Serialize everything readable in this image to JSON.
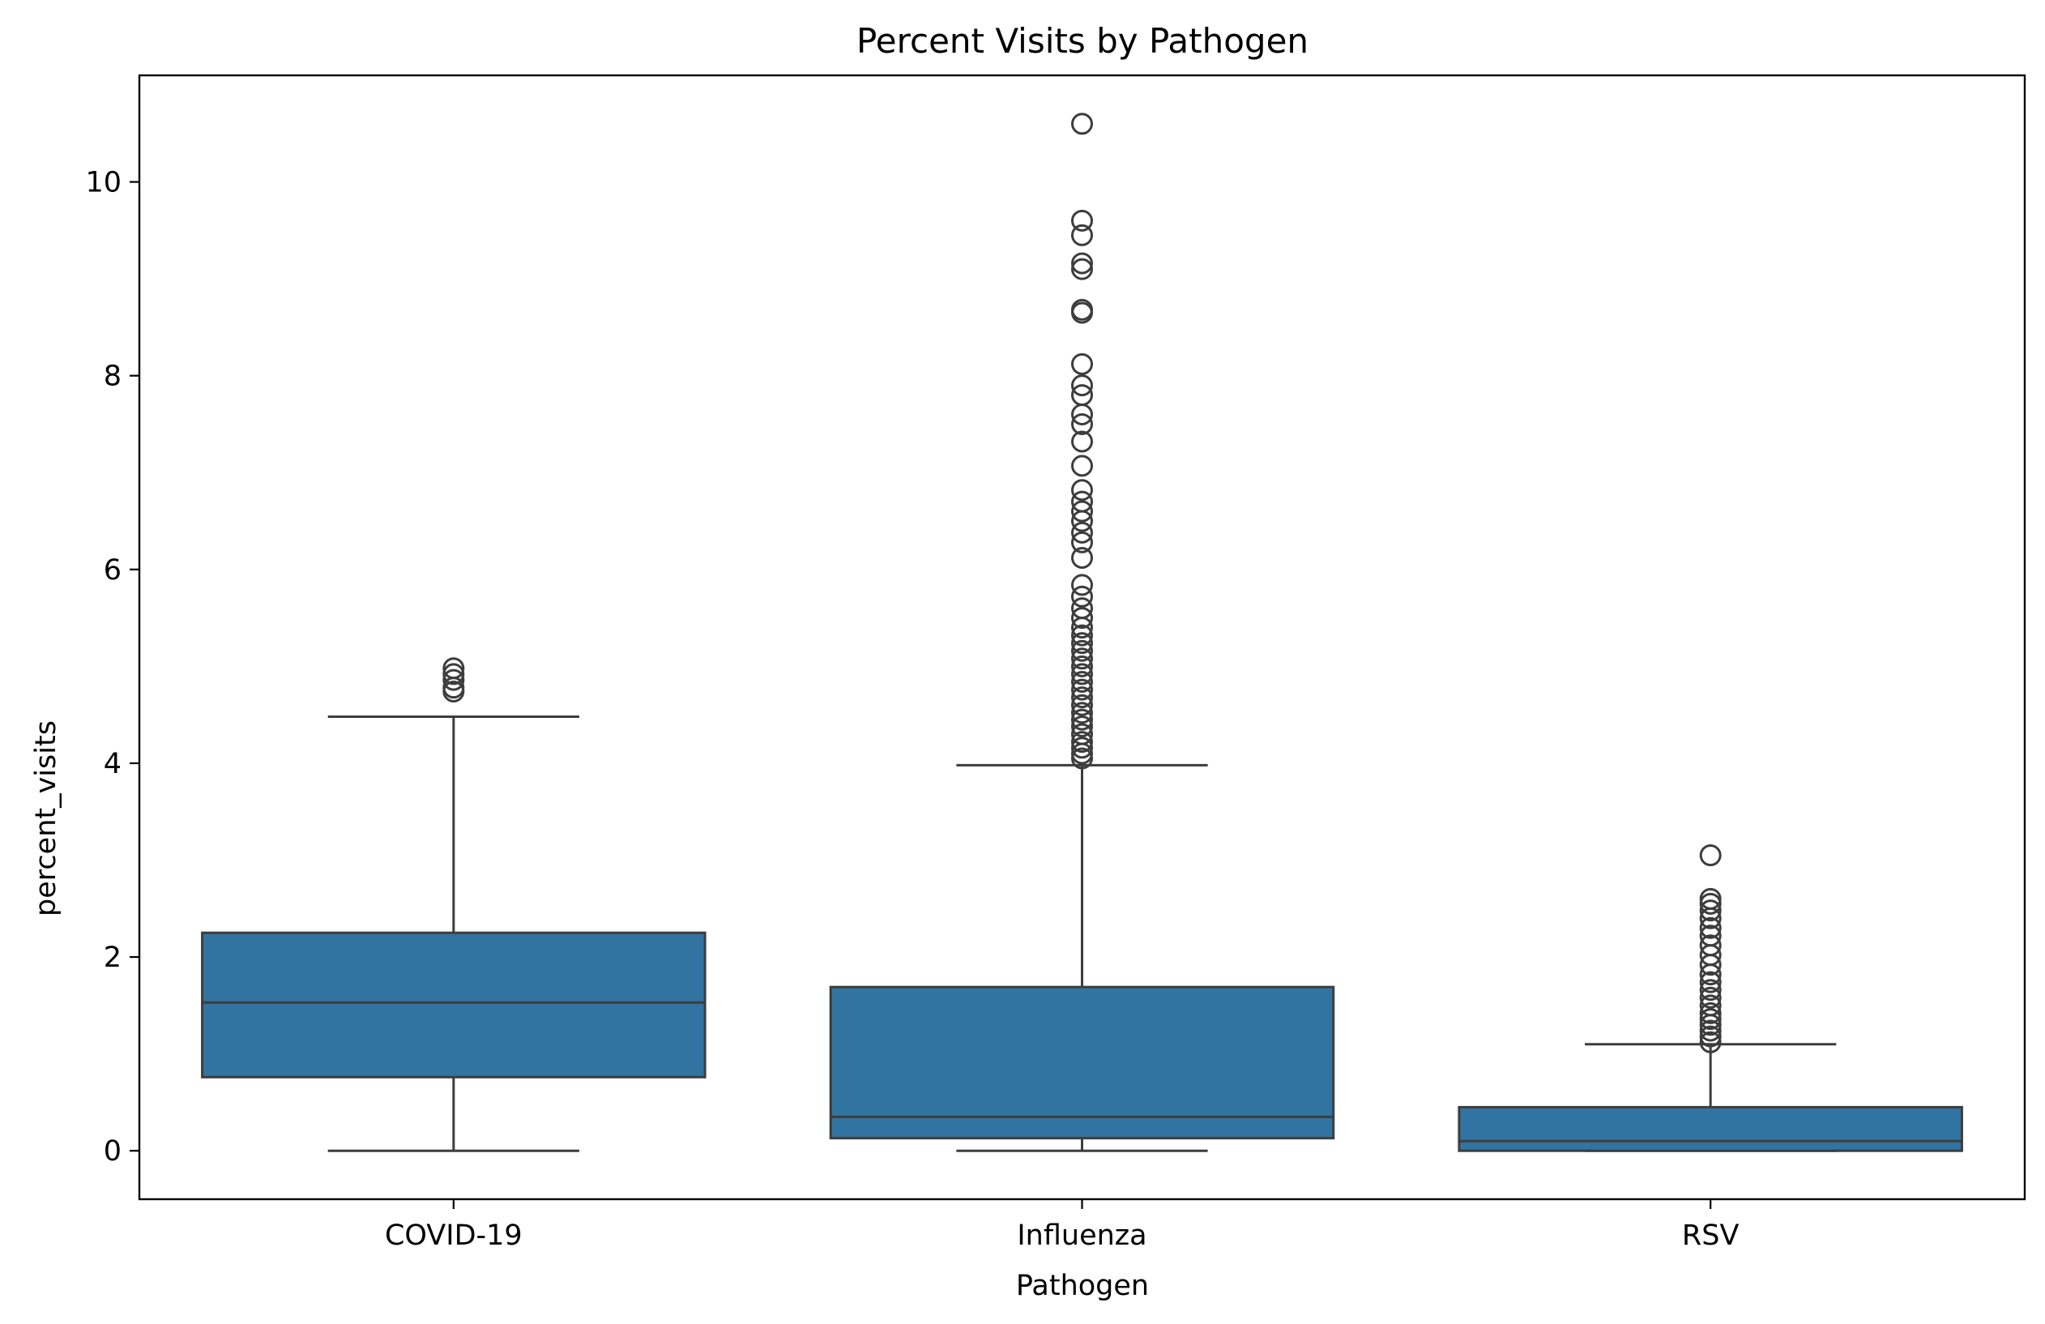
{
  "chart_data": {
    "type": "box",
    "title": "Percent Visits by Pathogen",
    "xlabel": "Pathogen",
    "ylabel": "percent_visits",
    "ylim": [
      -0.5,
      11.1
    ],
    "yticks": [
      0,
      2,
      4,
      6,
      8,
      10
    ],
    "grid": false,
    "box_color": "#3274a1",
    "line_color": "#3d3d3d",
    "categories": [
      "COVID-19",
      "Influenza",
      "RSV"
    ],
    "boxes": [
      {
        "category": "COVID-19",
        "whisker_low": 0.0,
        "q1": 0.76,
        "median": 1.53,
        "q3": 2.25,
        "whisker_high": 4.48,
        "outliers": [
          4.74,
          4.78,
          4.86,
          4.92,
          4.98
        ]
      },
      {
        "category": "Influenza",
        "whisker_low": 0.0,
        "q1": 0.13,
        "median": 0.35,
        "q3": 1.69,
        "whisker_high": 3.98,
        "outliers": [
          4.05,
          4.1,
          4.16,
          4.22,
          4.3,
          4.38,
          4.45,
          4.52,
          4.6,
          4.68,
          4.76,
          4.84,
          4.92,
          5.0,
          5.08,
          5.16,
          5.24,
          5.32,
          5.4,
          5.5,
          5.6,
          5.72,
          5.84,
          6.12,
          6.28,
          6.38,
          6.5,
          6.6,
          6.7,
          6.82,
          7.07,
          7.32,
          7.5,
          7.6,
          7.8,
          7.9,
          8.12,
          8.65,
          8.68,
          9.1,
          9.16,
          9.45,
          9.6,
          10.6
        ]
      },
      {
        "category": "RSV",
        "whisker_low": 0.0,
        "q1": 0.0,
        "median": 0.1,
        "q3": 0.45,
        "whisker_high": 1.1,
        "outliers": [
          1.12,
          1.18,
          1.24,
          1.3,
          1.36,
          1.42,
          1.5,
          1.58,
          1.66,
          1.74,
          1.82,
          1.92,
          2.02,
          2.12,
          2.22,
          2.3,
          2.4,
          2.48,
          2.55,
          2.6,
          3.05
        ]
      }
    ]
  }
}
